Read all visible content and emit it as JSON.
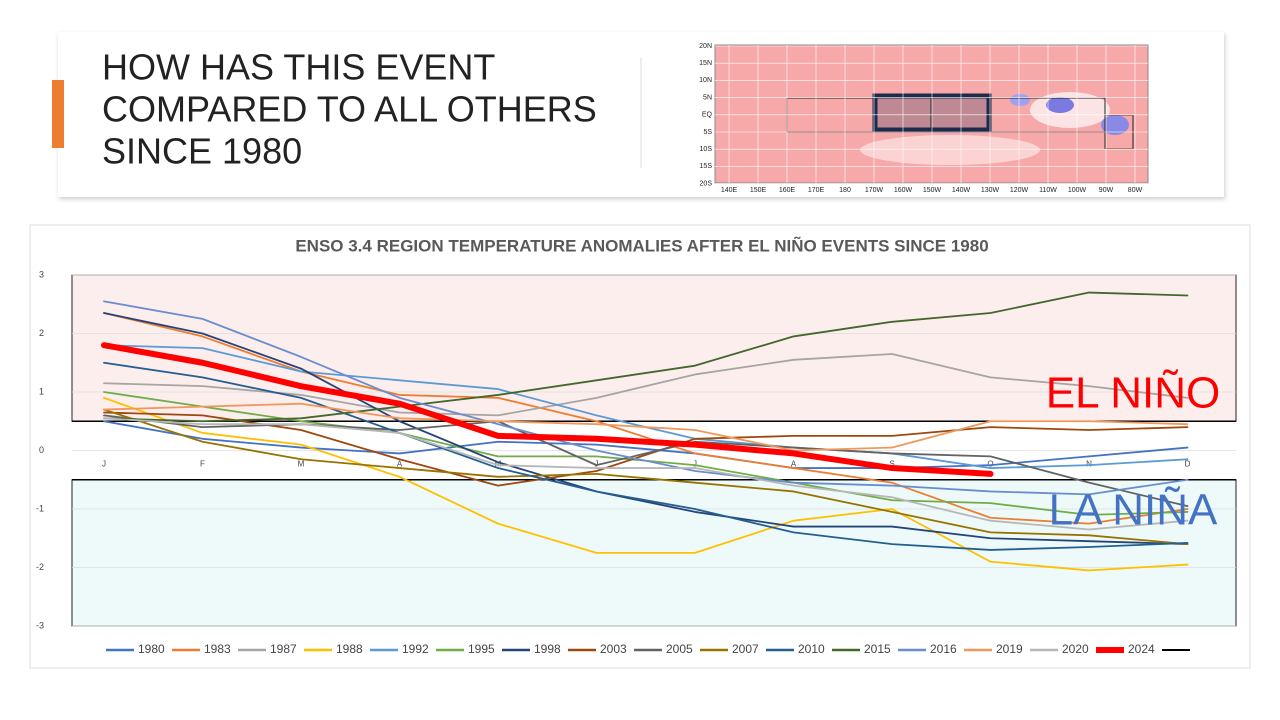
{
  "slide": {
    "title_lines": [
      "HOW HAS THIS EVENT",
      "COMPARED TO ALL OTHERS",
      "SINCE 1980"
    ]
  },
  "map": {
    "lat_labels": [
      "20N",
      "15N",
      "10N",
      "5N",
      "EQ",
      "5S",
      "10S",
      "15S",
      "20S"
    ],
    "lon_labels": [
      "140E",
      "150E",
      "160E",
      "170E",
      "180",
      "170W",
      "160W",
      "150W",
      "140W",
      "130W",
      "120W",
      "110W",
      "100W",
      "90W",
      "80W"
    ]
  },
  "chart_data": {
    "type": "line",
    "title": "ENSO 3.4 REGION TEMPERATURE ANOMALIES AFTER EL NIÑO EVENTS SINCE 1980",
    "categories": [
      "J",
      "F",
      "M",
      "A",
      "M",
      "J",
      "J",
      "A",
      "S",
      "O",
      "N",
      "D"
    ],
    "ylim": [
      -3,
      3
    ],
    "yticks": [
      -3,
      -2,
      -1,
      0,
      1,
      2,
      3
    ],
    "threshold_lines": [
      0.5,
      -0.5
    ],
    "annotations": [
      "EL NIÑO",
      "LA NIÑA"
    ],
    "series": [
      {
        "name": "1980",
        "color": "#4472c4",
        "values": [
          0.5,
          0.2,
          0.05,
          -0.05,
          0.15,
          0.1,
          -0.05,
          -0.3,
          -0.3,
          -0.25,
          -0.1,
          0.05
        ]
      },
      {
        "name": "1983",
        "color": "#ed7d31",
        "values": [
          2.35,
          1.95,
          1.35,
          0.95,
          0.9,
          0.5,
          -0.05,
          -0.3,
          -0.55,
          -1.15,
          -1.25,
          -1.0
        ]
      },
      {
        "name": "1987",
        "color": "#a5a5a5",
        "values": [
          1.15,
          1.1,
          0.95,
          0.65,
          0.6,
          0.9,
          1.3,
          1.55,
          1.65,
          1.25,
          1.1,
          0.9
        ]
      },
      {
        "name": "1988",
        "color": "#ffc000",
        "values": [
          0.9,
          0.3,
          0.1,
          -0.45,
          -1.25,
          -1.75,
          -1.75,
          -1.2,
          -1.0,
          -1.9,
          -2.05,
          -1.95
        ]
      },
      {
        "name": "1992",
        "color": "#5b9bd5",
        "values": [
          1.8,
          1.75,
          1.35,
          1.2,
          1.05,
          0.6,
          0.2,
          0.05,
          -0.05,
          -0.3,
          -0.25,
          -0.15
        ]
      },
      {
        "name": "1995",
        "color": "#70ad47",
        "values": [
          1.0,
          0.75,
          0.5,
          0.3,
          -0.1,
          -0.1,
          -0.25,
          -0.55,
          -0.85,
          -0.9,
          -1.1,
          -1.05
        ]
      },
      {
        "name": "1998",
        "color": "#264478",
        "values": [
          2.35,
          2.0,
          1.4,
          0.5,
          -0.2,
          -0.7,
          -1.05,
          -1.3,
          -1.3,
          -1.5,
          -1.55,
          -1.6
        ]
      },
      {
        "name": "2003",
        "color": "#9e480e",
        "values": [
          0.65,
          0.6,
          0.35,
          -0.15,
          -0.6,
          -0.35,
          0.2,
          0.25,
          0.25,
          0.4,
          0.35,
          0.4
        ]
      },
      {
        "name": "2005",
        "color": "#636363",
        "values": [
          0.6,
          0.4,
          0.45,
          0.35,
          0.5,
          -0.25,
          0.15,
          0.05,
          -0.05,
          -0.1,
          -0.55,
          -0.95
        ]
      },
      {
        "name": "2007",
        "color": "#997300",
        "values": [
          0.7,
          0.15,
          -0.15,
          -0.3,
          -0.45,
          -0.4,
          -0.55,
          -0.7,
          -1.05,
          -1.4,
          -1.45,
          -1.6
        ]
      },
      {
        "name": "2010",
        "color": "#255e91",
        "values": [
          1.5,
          1.25,
          0.9,
          0.3,
          -0.3,
          -0.7,
          -1.0,
          -1.4,
          -1.6,
          -1.7,
          -1.65,
          -1.58
        ]
      },
      {
        "name": "2015",
        "color": "#43682b",
        "values": [
          0.55,
          0.5,
          0.55,
          0.75,
          0.95,
          1.2,
          1.45,
          1.95,
          2.2,
          2.35,
          2.7,
          2.65
        ]
      },
      {
        "name": "2016",
        "color": "#698ed0",
        "values": [
          2.55,
          2.25,
          1.6,
          0.9,
          0.45,
          0.0,
          -0.35,
          -0.55,
          -0.6,
          -0.7,
          -0.75,
          -0.5
        ]
      },
      {
        "name": "2019",
        "color": "#f1975a",
        "values": [
          0.7,
          0.75,
          0.8,
          0.55,
          0.5,
          0.45,
          0.35,
          0.0,
          0.05,
          0.5,
          0.5,
          0.45
        ]
      },
      {
        "name": "2020",
        "color": "#b7b7b7",
        "values": [
          0.55,
          0.45,
          0.45,
          0.3,
          -0.25,
          -0.3,
          -0.3,
          -0.6,
          -0.8,
          -1.2,
          -1.35,
          -1.2
        ]
      },
      {
        "name": "2024",
        "color": "#ff0000",
        "values": [
          1.8,
          1.5,
          1.1,
          0.8,
          0.25,
          0.2,
          0.1,
          -0.05,
          -0.3,
          -0.4,
          null,
          null
        ]
      }
    ]
  }
}
